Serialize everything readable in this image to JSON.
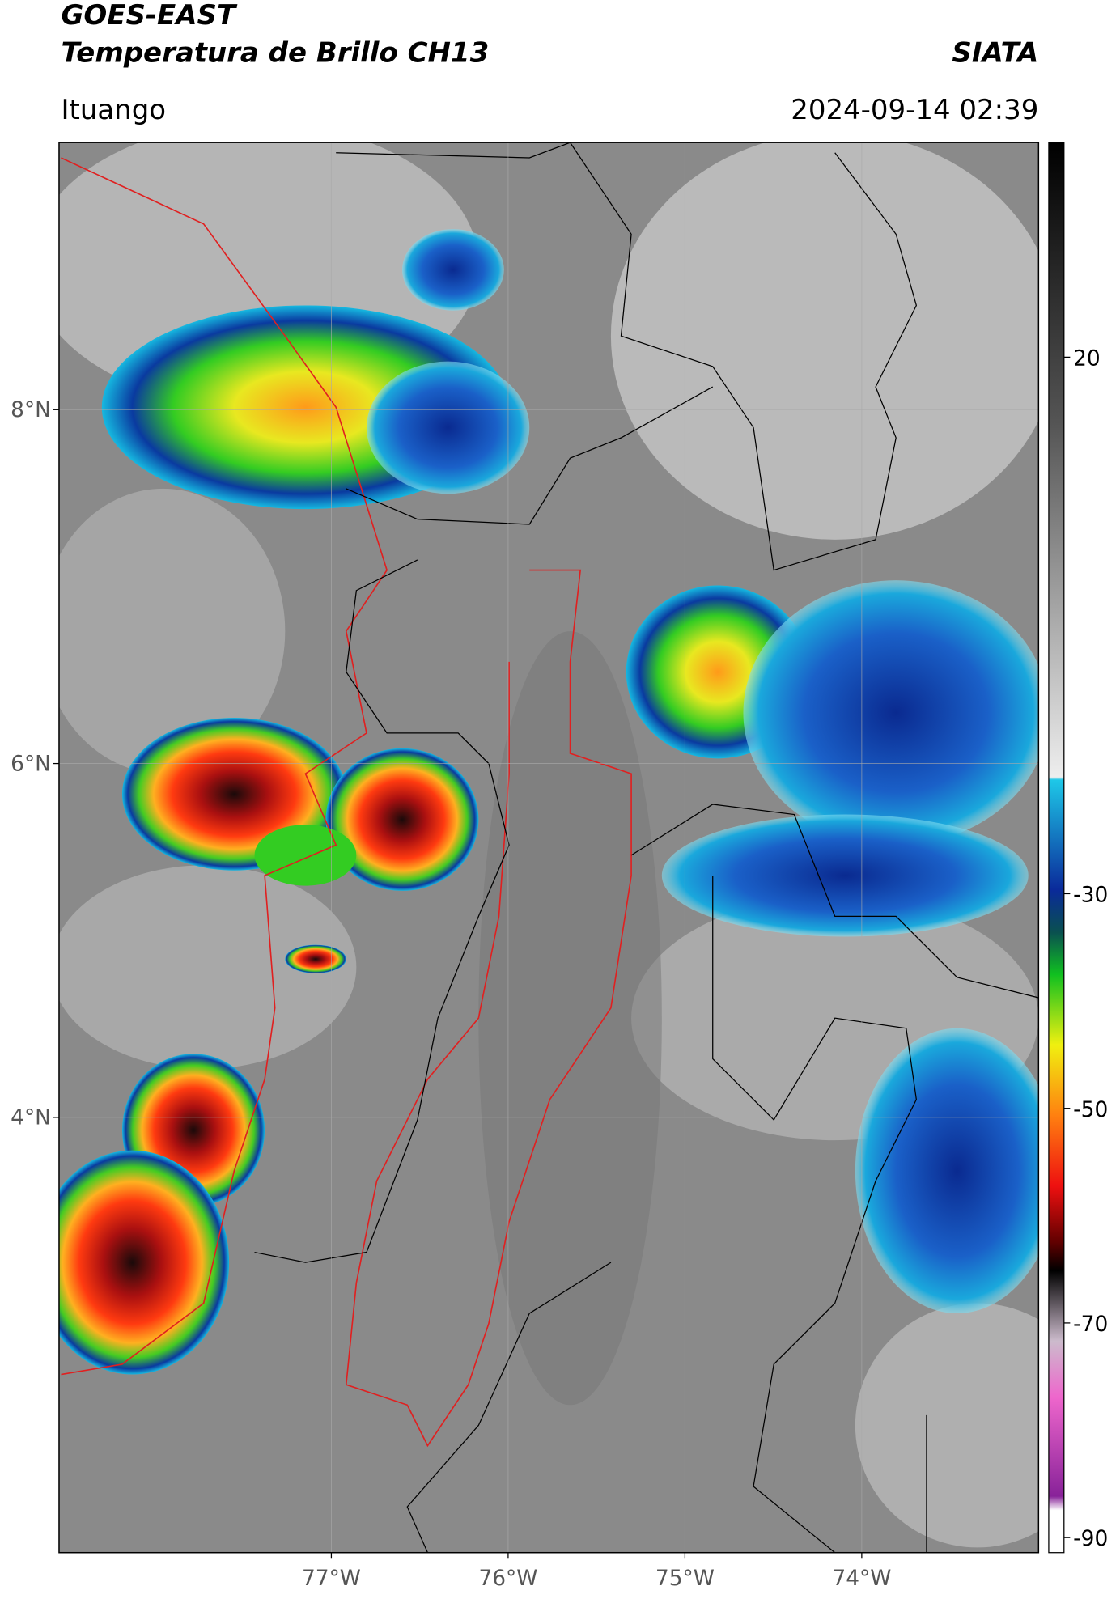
{
  "header": {
    "title_line1": "GOES-EAST",
    "title_line2": "Temperatura de Brillo CH13",
    "source": "SIATA",
    "region": "Ituango",
    "datetime": "2024-09-14 02:39"
  },
  "map": {
    "latlim": [
      1.54,
      9.51
    ],
    "lonlim": [
      -78.54,
      -73.0
    ],
    "lat_ticks": [
      {
        "value": 8,
        "label": "8°N"
      },
      {
        "value": 6,
        "label": "6°N"
      },
      {
        "value": 4,
        "label": "4°N"
      }
    ],
    "lon_ticks": [
      {
        "value": -77,
        "label": "77°W"
      },
      {
        "value": -76,
        "label": "76°W"
      },
      {
        "value": -75,
        "label": "75°W"
      },
      {
        "value": -74,
        "label": "74°W"
      }
    ]
  },
  "colorbar": {
    "lim": [
      -91.4,
      40
    ],
    "ticks": [
      20,
      -30,
      -50,
      -70,
      -90
    ]
  }
}
